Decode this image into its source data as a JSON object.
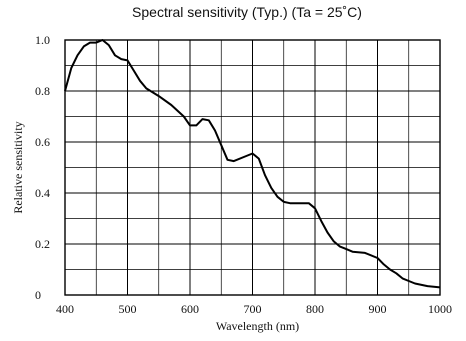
{
  "chart_data": {
    "type": "line",
    "title": "Spectral sensitivity (Typ.) (Ta = 25˚C)",
    "xlabel": "Wavelength (nm)",
    "ylabel": "Relative sensitivity",
    "xlim": [
      400,
      1000
    ],
    "ylim": [
      0,
      1.0
    ],
    "x_ticks": [
      400,
      500,
      600,
      700,
      800,
      900,
      1000
    ],
    "x_tick_labels": [
      "400",
      "500",
      "600",
      "700",
      "800",
      "900",
      "1000"
    ],
    "y_ticks": [
      0,
      0.2,
      0.4,
      0.6,
      0.8,
      1.0
    ],
    "y_tick_labels": [
      "0",
      "0.2",
      "0.4",
      "0.6",
      "0.8",
      "1.0"
    ],
    "grid": true,
    "series": [
      {
        "x": [
          400,
          410,
          420,
          430,
          440,
          450,
          460,
          470,
          480,
          490,
          500,
          510,
          520,
          530,
          550,
          570,
          590,
          600,
          610,
          620,
          630,
          640,
          660,
          670,
          690,
          700,
          710,
          720,
          730,
          740,
          750,
          760,
          770,
          780,
          790,
          800,
          810,
          820,
          830,
          840,
          850,
          860,
          880,
          900,
          910,
          920,
          930,
          940,
          950,
          960,
          980,
          1000
        ],
        "y": [
          0.8,
          0.89,
          0.94,
          0.975,
          0.99,
          0.99,
          1.0,
          0.98,
          0.94,
          0.925,
          0.92,
          0.88,
          0.84,
          0.81,
          0.78,
          0.745,
          0.7,
          0.665,
          0.665,
          0.69,
          0.685,
          0.645,
          0.53,
          0.525,
          0.545,
          0.555,
          0.535,
          0.47,
          0.42,
          0.385,
          0.365,
          0.36,
          0.36,
          0.36,
          0.36,
          0.34,
          0.29,
          0.245,
          0.21,
          0.19,
          0.18,
          0.17,
          0.165,
          0.145,
          0.12,
          0.1,
          0.085,
          0.065,
          0.055,
          0.045,
          0.035,
          0.03
        ]
      }
    ]
  }
}
